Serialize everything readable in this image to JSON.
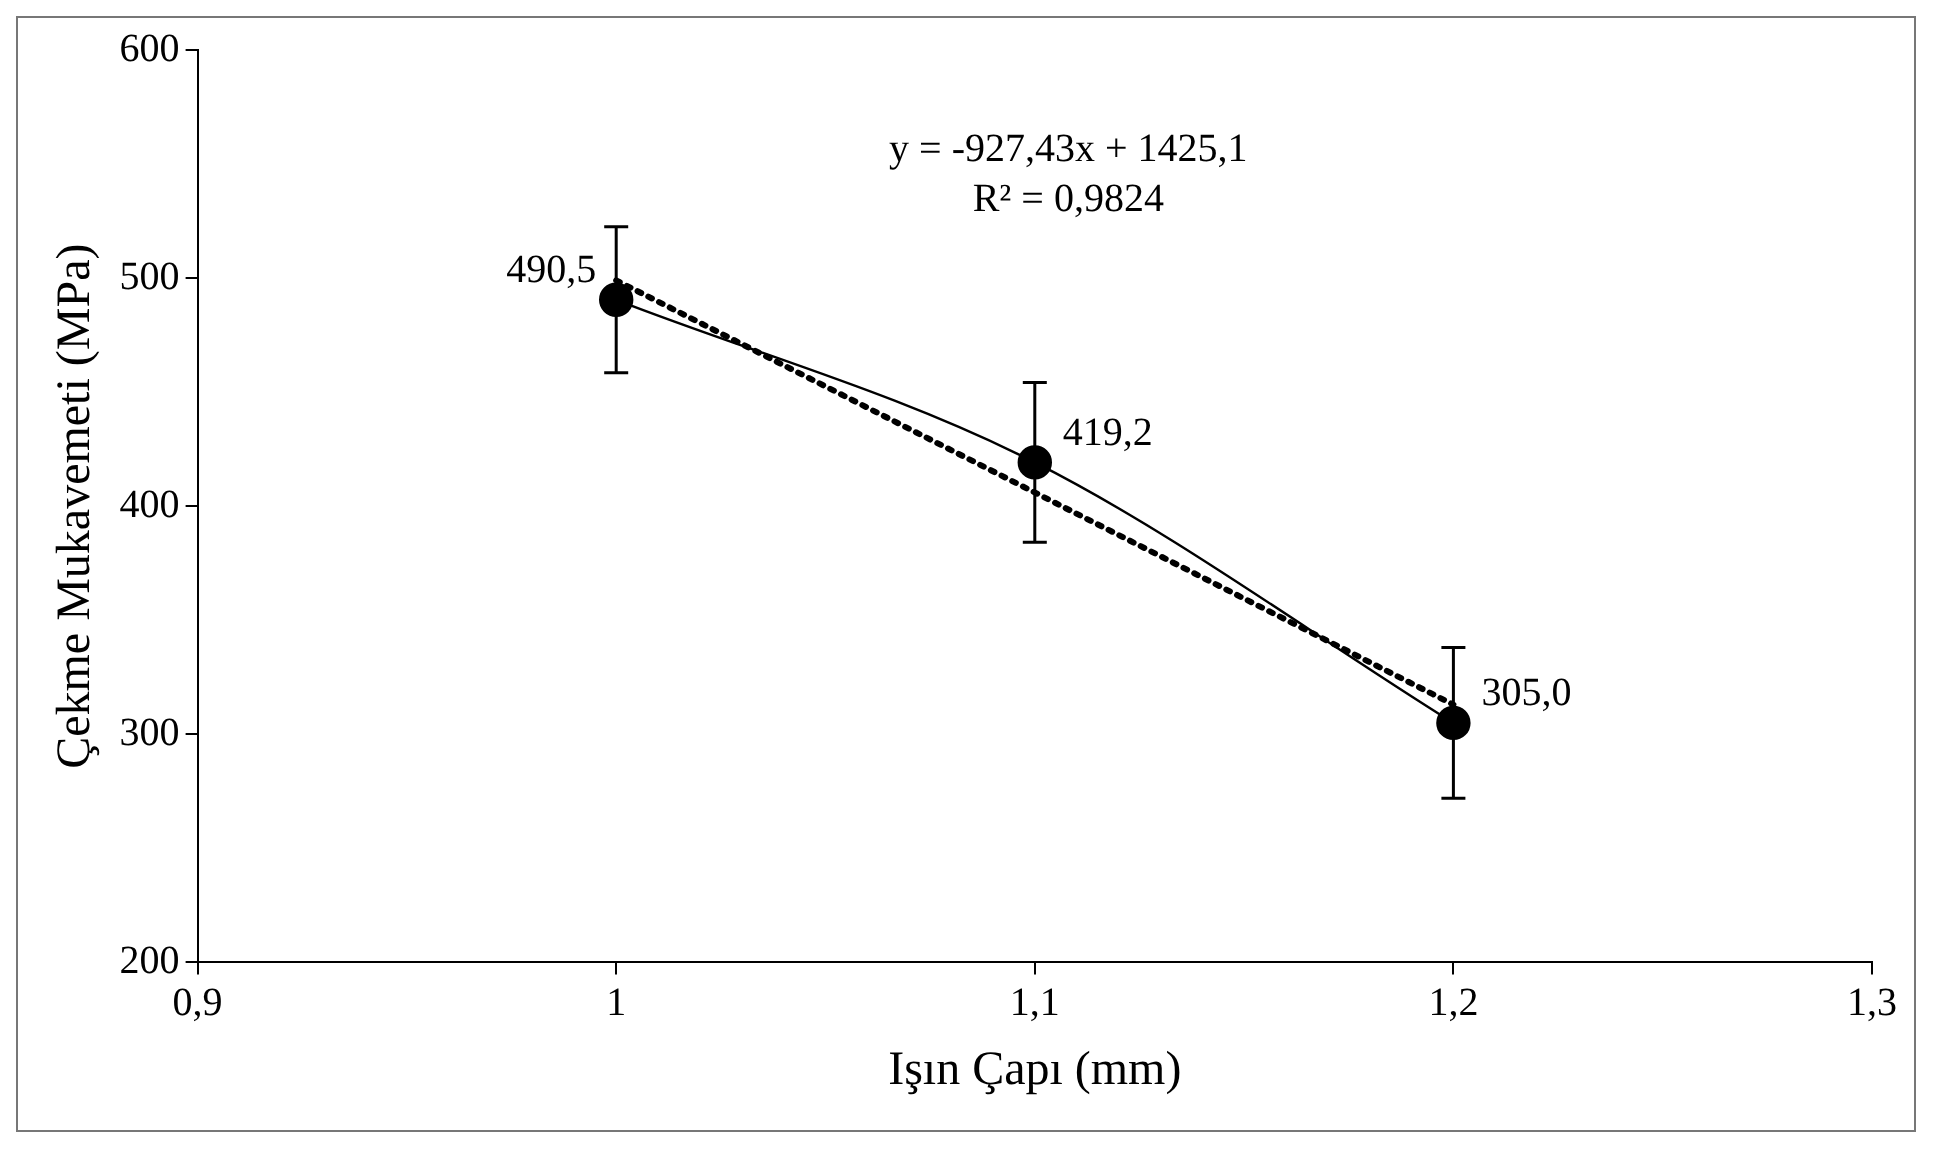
{
  "chart_data": {
    "type": "line",
    "xlabel": "Işın Çapı (mm)",
    "ylabel": "Çekme Mukavemeti (MPa)",
    "xlim": [
      0.9,
      1.3
    ],
    "xticks": [
      {
        "value": 0.9,
        "label": "0,9"
      },
      1,
      {
        "value": 1.1,
        "label": "1,1"
      },
      {
        "value": 1.2,
        "label": "1,2"
      },
      {
        "value": 1.3,
        "label": "1,3"
      }
    ],
    "ylim": [
      200,
      600
    ],
    "yticks": [
      200,
      300,
      400,
      500,
      600
    ],
    "grid": false,
    "legend": false,
    "annotations": [
      "y = -927,43x + 1425,1",
      "R² = 0,9824"
    ],
    "series": [
      {
        "x": [
          1,
          1.1,
          1.2
        ],
        "values": [
          490.5,
          419.2,
          305.0
        ],
        "color": "#000000",
        "marker": "circle",
        "line_style": "solid",
        "errors": [
          32,
          35,
          33
        ],
        "value_labels": [
          "490,5",
          "419,2",
          "305,0"
        ]
      },
      {
        "x": [
          1,
          1.2
        ],
        "values": [
          499,
          313
        ],
        "color": "#000000",
        "marker": "none",
        "line_style": "dotted"
      }
    ]
  }
}
